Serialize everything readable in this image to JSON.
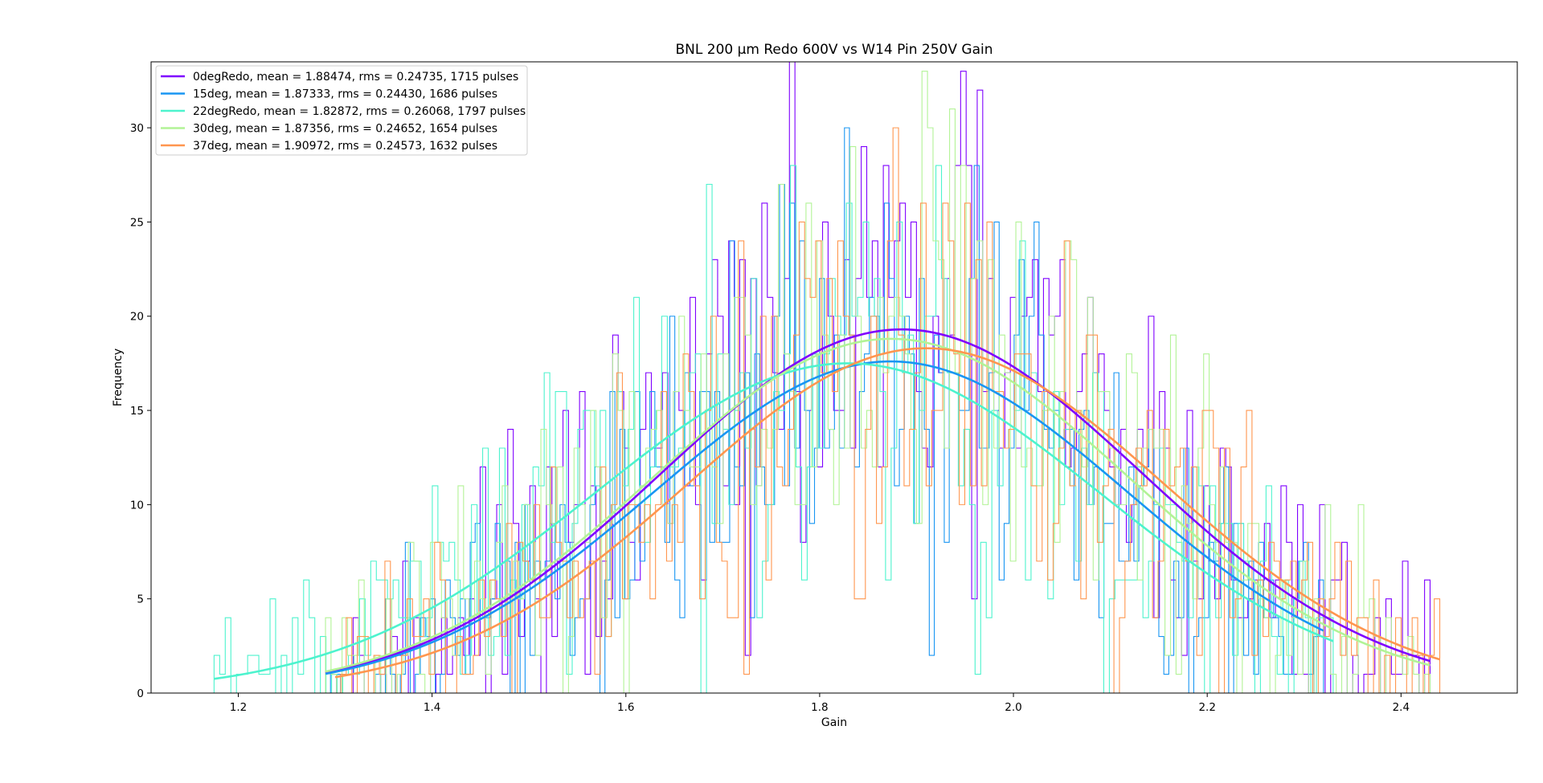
{
  "chart_data": {
    "type": "histogram",
    "title": "BNL 200 µm Redo 600V vs W14 Pin 250V Gain",
    "xlabel": "Gain",
    "ylabel": "Frequency",
    "xlim": [
      1.11,
      2.52
    ],
    "ylim": [
      0,
      33.5
    ],
    "xticks": [
      "1.2",
      "1.4",
      "1.6",
      "1.8",
      "2.0",
      "2.2",
      "2.4"
    ],
    "yticks": [
      "0",
      "5",
      "10",
      "15",
      "20",
      "25",
      "30"
    ],
    "grid": false,
    "legend_position": "top-left",
    "bins": 200,
    "series": [
      {
        "name": "0degRedo",
        "label": "0degRedo, mean = 1.88474, rms = 0.24735, 1715 pulses",
        "color": "#7f00ff",
        "mean": 1.88474,
        "rms": 0.24735,
        "count": 1715,
        "xmin": 1.29,
        "xmax": 2.43,
        "peak": 19.3
      },
      {
        "name": "15deg",
        "label": "15deg, mean = 1.87333, rms = 0.24430, 1686 pulses",
        "color": "#1996f3",
        "mean": 1.87333,
        "rms": 0.2443,
        "count": 1686,
        "xmin": 1.29,
        "xmax": 2.32,
        "peak": 17.6
      },
      {
        "name": "22degRedo",
        "label": "22degRedo, mean = 1.82872, rms = 0.26068, 1797 pulses",
        "color": "#4df3ce",
        "mean": 1.82872,
        "rms": 0.26068,
        "count": 1797,
        "xmin": 1.175,
        "xmax": 2.33,
        "peak": 17.5
      },
      {
        "name": "30deg",
        "label": "30deg, mean = 1.87356, rms = 0.24652, 1654 pulses",
        "color": "#b2f396",
        "mean": 1.87356,
        "rms": 0.24652,
        "count": 1654,
        "xmin": 1.29,
        "xmax": 2.43,
        "peak": 18.8
      },
      {
        "name": "37deg",
        "label": "37deg, mean = 1.90972, rms = 0.24573, 1632 pulses",
        "color": "#ff964f",
        "mean": 1.90972,
        "rms": 0.24573,
        "count": 1632,
        "xmin": 1.3,
        "xmax": 2.44,
        "peak": 18.3
      }
    ]
  }
}
